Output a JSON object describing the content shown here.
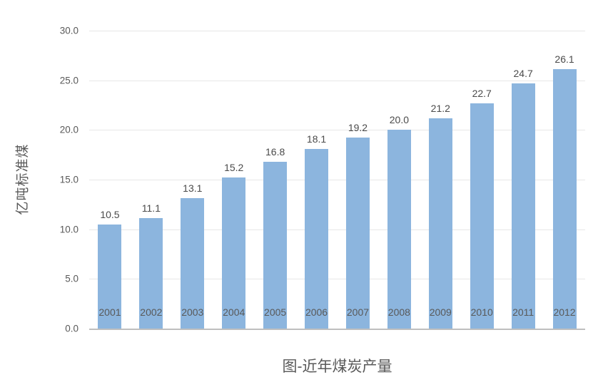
{
  "chart_data": {
    "type": "bar",
    "title": "图-近年煤炭产量",
    "ylabel": "亿吨标准煤",
    "xlabel": "",
    "categories": [
      "2001",
      "2002",
      "2003",
      "2004",
      "2005",
      "2006",
      "2007",
      "2008",
      "2009",
      "2010",
      "2011",
      "2012"
    ],
    "values": [
      10.5,
      11.1,
      13.1,
      15.2,
      16.8,
      18.1,
      19.2,
      20.0,
      21.2,
      22.7,
      24.7,
      26.1
    ],
    "value_labels": [
      "10.5",
      "11.1",
      "13.1",
      "15.2",
      "16.8",
      "18.1",
      "19.2",
      "20.0",
      "21.2",
      "22.7",
      "24.7",
      "26.1"
    ],
    "ylim": [
      0,
      30
    ],
    "ytick_labels": [
      "0.0",
      "5.0",
      "10.0",
      "15.0",
      "20.0",
      "25.0",
      "30.0"
    ],
    "ytick_values": [
      0,
      5,
      10,
      15,
      20,
      25,
      30
    ],
    "grid": true,
    "legend_position": "none",
    "colors": {
      "bar": "#8cb5de",
      "gridline": "#e7e7e7",
      "axis_line": "#bfbfbf",
      "tick_text": "#595959",
      "value_text": "#4a4a4a",
      "title_text": "#595959"
    }
  }
}
